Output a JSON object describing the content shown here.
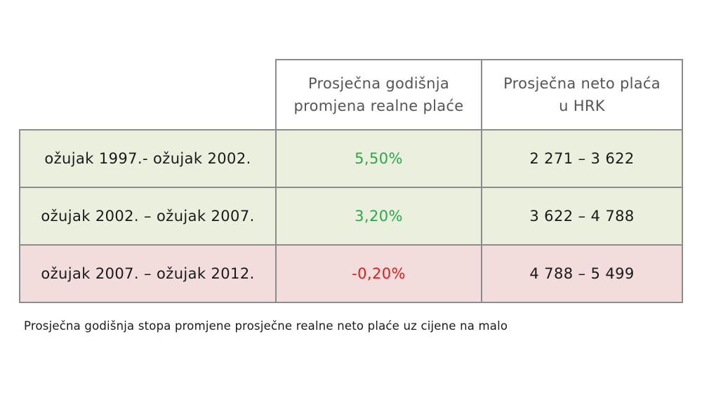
{
  "chart_data": {
    "type": "table",
    "columns": [
      "",
      "Prosječna godišnja promjena realne plaće",
      "Prosječna neto plaća u HRK"
    ],
    "header": {
      "col1_line1": "Prosječna godišnja",
      "col1_line2": "promjena realne plaće",
      "col2_line1": "Prosječna neto plaća",
      "col2_line2": "u HRK"
    },
    "rows": [
      {
        "period": "ožujak 1997.- ožujak 2002.",
        "change": "5,50%",
        "change_value": 5.5,
        "salary": "2 271 – 3 622",
        "salary_from": 2271,
        "salary_to": 3622
      },
      {
        "period": "ožujak 2002. – ožujak 2007.",
        "change": "3,20%",
        "change_value": 3.2,
        "salary": "3 622 – 4 788",
        "salary_from": 3622,
        "salary_to": 4788
      },
      {
        "period": "ožujak 2007. – ožujak 2012.",
        "change": "-0,20%",
        "change_value": -0.2,
        "salary": "4 788 – 5 499",
        "salary_from": 4788,
        "salary_to": 5499
      }
    ],
    "caption": "Prosječna godišnja stopa promjene prosječne realne neto plaće uz cijene na malo"
  },
  "colors": {
    "positive_row": "#ebf0de",
    "negative_row": "#f2dcdc",
    "positive_text": "#2aa84a",
    "negative_text": "#e02020",
    "border": "#8c8c8c"
  }
}
